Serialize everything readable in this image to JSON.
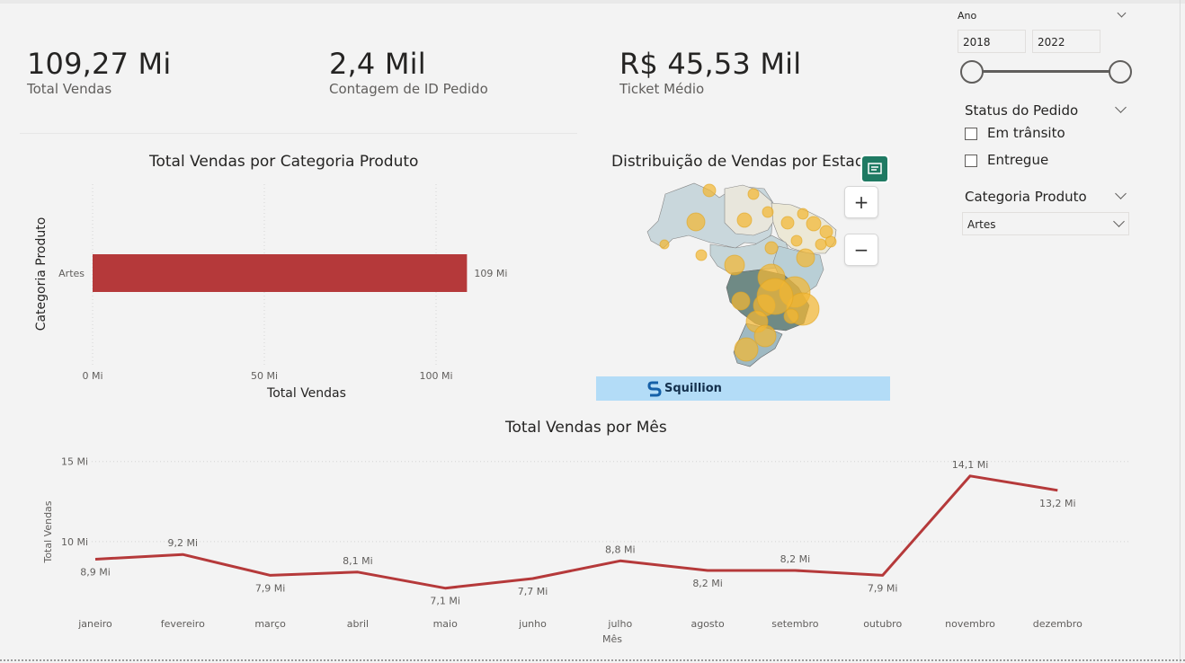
{
  "kpis": [
    {
      "value": "109,27 Mi",
      "label": "Total Vendas"
    },
    {
      "value": "2,4 Mil",
      "label": "Contagem de ID Pedido"
    },
    {
      "value": "R$ 45,53 Mil",
      "label": "Ticket Médio"
    }
  ],
  "slicers": {
    "year": {
      "title": "Ano",
      "start": "2018",
      "end": "2022",
      "range_min": 2018,
      "range_max": 2022,
      "selected_min": 2018,
      "selected_max": 2022
    },
    "status": {
      "title": "Status do Pedido",
      "options": [
        "Em trânsito",
        "Entregue"
      ]
    },
    "category": {
      "title": "Categoria Produto",
      "selected": "Artes"
    }
  },
  "category_chart": {
    "title": "Total Vendas por Categoria Produto",
    "ylabel": "Categoria Produto",
    "xlabel": "Total Vendas",
    "categories": [
      "Artes"
    ],
    "values": [
      109
    ],
    "data_labels": [
      "109 Mi"
    ],
    "ticks": [
      "0 Mi",
      "50 Mi",
      "100 Mi"
    ],
    "tick_values": [
      0,
      50,
      100
    ]
  },
  "map": {
    "title": "Distribuição de Vendas por Estado",
    "zoom_in": "+",
    "zoom_out": "−",
    "brand": "Squillion"
  },
  "chart_data": {
    "type": "line",
    "title": "Total Vendas por Mês",
    "xlabel": "Mês",
    "ylabel": "Total Vendas",
    "categories": [
      "janeiro",
      "fevereiro",
      "março",
      "abril",
      "maio",
      "junho",
      "julho",
      "agosto",
      "setembro",
      "outubro",
      "novembro",
      "dezembro"
    ],
    "values": [
      8.9,
      9.2,
      7.9,
      8.1,
      7.1,
      7.7,
      8.8,
      8.2,
      8.2,
      7.9,
      14.1,
      13.2
    ],
    "data_labels": [
      "8,9 Mi",
      "9,2 Mi",
      "7,9 Mi",
      "8,1 Mi",
      "7,1 Mi",
      "7,7 Mi",
      "8,8 Mi",
      "8,2 Mi",
      "8,2 Mi",
      "7,9 Mi",
      "14,1 Mi",
      "13,2 Mi"
    ],
    "y_ticks": [
      "10 Mi",
      "15 Mi"
    ],
    "y_tick_values": [
      10,
      15
    ],
    "ylim": [
      6.5,
      15.5
    ],
    "color": "#b5393a"
  },
  "colors": {
    "bar": "#b5393a",
    "bubble": "#f2b733",
    "brand_bg": "#b3dcf7"
  }
}
